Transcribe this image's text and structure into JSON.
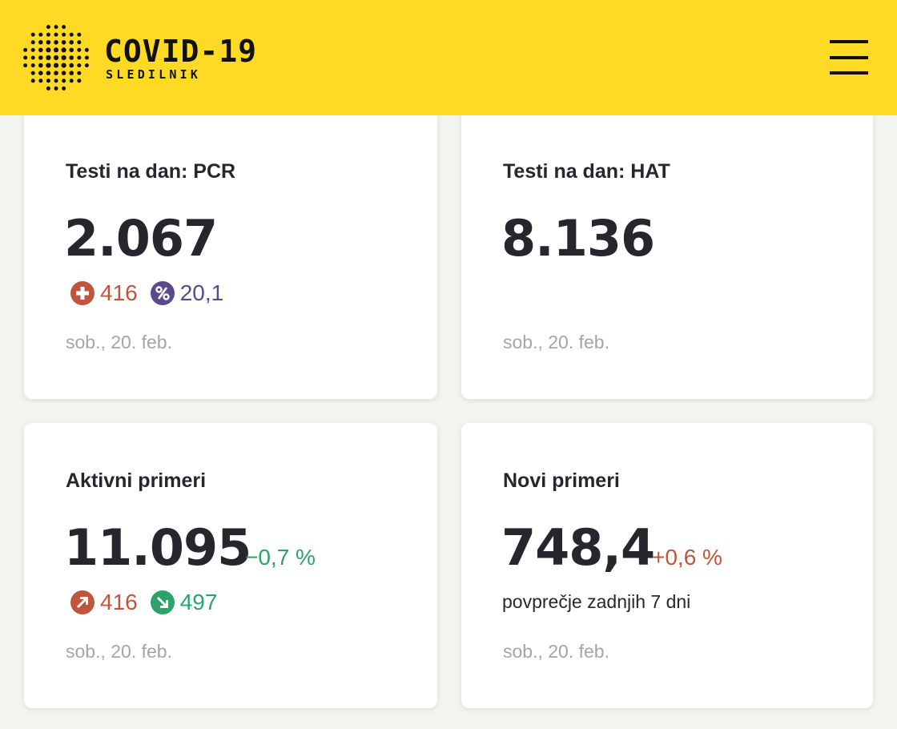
{
  "header": {
    "brand_title": "COVID-19",
    "brand_subtitle": "SLEDILNIK",
    "logo_icon": "dotted-circle-logo-icon",
    "menu_icon": "hamburger-menu-icon",
    "background_color": "#ffda24"
  },
  "cards": [
    {
      "title": "Testi na dan: PCR",
      "value": "2.067",
      "badges": [
        {
          "icon": "plus-circle-icon",
          "value": "416",
          "color": "#c0553e"
        },
        {
          "icon": "percent-circle-icon",
          "value": "20,1",
          "color": "#5a4a8c"
        }
      ],
      "date": "sob., 20. feb."
    },
    {
      "title": "Testi na dan: HAT",
      "value": "8.136",
      "date": "sob., 20. feb."
    },
    {
      "title": "Aktivni primeri",
      "value": "11.095",
      "change": "−0,7 %",
      "badges": [
        {
          "icon": "arrow-up-right-circle-icon",
          "value": "416",
          "color": "#c0553e"
        },
        {
          "icon": "arrow-down-right-circle-icon",
          "value": "497",
          "color": "#2aa46a"
        }
      ],
      "date": "sob., 20. feb."
    },
    {
      "title": "Novi primeri",
      "value": "748,4",
      "change": "+0,6 %",
      "subnote": "povprečje zadnjih 7 dni",
      "date": "sob., 20. feb."
    }
  ]
}
